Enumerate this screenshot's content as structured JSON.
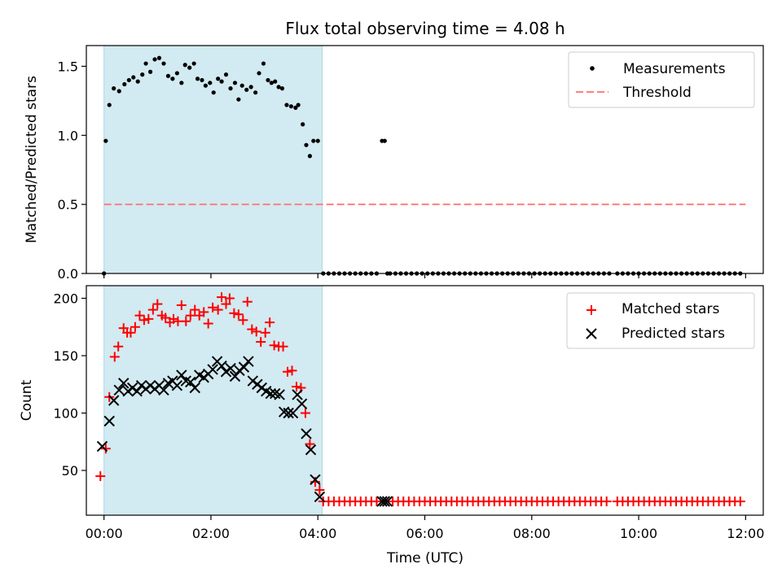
{
  "figure": {
    "title": "Flux total observing time = 4.08 h",
    "xlabel": "Time (UTC)",
    "x_ticks": [
      "00:00",
      "02:00",
      "04:00",
      "06:00",
      "08:00",
      "10:00",
      "12:00"
    ],
    "x_tick_hours": [
      0,
      2,
      4,
      6,
      8,
      10,
      12
    ],
    "xlim_hours": [
      -0.33,
      12.33
    ],
    "observing_window_hours": [
      0,
      4.08
    ],
    "observing_window_color": "#add8e6"
  },
  "chart_data": [
    {
      "type": "scatter",
      "title": "Flux total observing time = 4.08 h",
      "ylabel": "Matched/Predicted stars",
      "xlabel": "",
      "ylim": [
        0,
        1.65
      ],
      "y_ticks": [
        "0.0",
        "0.5",
        "1.0",
        "1.5"
      ],
      "y_tick_values": [
        0,
        0.5,
        1.0,
        1.5
      ],
      "legend_position": "top-right",
      "threshold": {
        "name": "Threshold",
        "value": 0.5,
        "x_range_hours": [
          0,
          12
        ],
        "color": "#ff7f7f",
        "style": "dashed"
      },
      "series": [
        {
          "name": "Measurements",
          "color": "#000000",
          "marker": "dot",
          "x_hours": [
            0,
            0.033,
            0.1,
            0.183,
            0.283,
            0.383,
            0.467,
            0.55,
            0.633,
            0.717,
            0.783,
            0.867,
            0.95,
            1.033,
            1.117,
            1.2,
            1.283,
            1.367,
            1.45,
            1.517,
            1.6,
            1.683,
            1.75,
            1.833,
            1.9,
            1.983,
            2.05,
            2.133,
            2.2,
            2.283,
            2.367,
            2.45,
            2.517,
            2.583,
            2.667,
            2.75,
            2.833,
            2.9,
            2.983,
            3.067,
            3.133,
            3.2,
            3.267,
            3.333,
            3.417,
            3.5,
            3.583,
            3.633,
            3.717,
            3.783,
            3.85,
            3.917,
            4.0,
            4.1,
            4.2,
            4.3,
            4.4,
            4.5,
            4.6,
            4.7,
            4.8,
            4.9,
            5.0,
            5.1,
            5.2,
            5.25,
            5.3,
            5.35,
            5.45,
            5.55,
            5.65,
            5.75,
            5.85,
            5.95,
            6.05,
            6.15,
            6.25,
            6.35,
            6.45,
            6.55,
            6.65,
            6.75,
            6.85,
            6.95,
            7.05,
            7.15,
            7.25,
            7.35,
            7.45,
            7.55,
            7.65,
            7.75,
            7.85,
            7.95,
            8.05,
            8.15,
            8.25,
            8.35,
            8.45,
            8.55,
            8.65,
            8.75,
            8.85,
            8.95,
            9.05,
            9.15,
            9.25,
            9.35,
            9.45,
            9.6,
            9.7,
            9.8,
            9.9,
            10.0,
            10.1,
            10.2,
            10.3,
            10.4,
            10.5,
            10.6,
            10.7,
            10.8,
            10.9,
            11.0,
            11.1,
            11.2,
            11.3,
            11.4,
            11.5,
            11.6,
            11.7,
            11.8,
            11.9
          ],
          "values": [
            0.0,
            0.96,
            1.22,
            1.34,
            1.32,
            1.37,
            1.4,
            1.42,
            1.39,
            1.44,
            1.52,
            1.46,
            1.55,
            1.56,
            1.52,
            1.43,
            1.41,
            1.45,
            1.38,
            1.51,
            1.49,
            1.52,
            1.41,
            1.4,
            1.36,
            1.38,
            1.31,
            1.41,
            1.39,
            1.44,
            1.34,
            1.38,
            1.26,
            1.36,
            1.33,
            1.35,
            1.31,
            1.45,
            1.52,
            1.4,
            1.38,
            1.39,
            1.35,
            1.34,
            1.22,
            1.21,
            1.2,
            1.22,
            1.08,
            0.93,
            0.85,
            0.96,
            0.96,
            0.0,
            0.0,
            0.0,
            0.0,
            0.0,
            0.0,
            0.0,
            0.0,
            0.0,
            0.0,
            0.0,
            0.96,
            0.96,
            0.0,
            0.0,
            0.0,
            0.0,
            0.0,
            0.0,
            0.0,
            0.0,
            0.0,
            0.0,
            0.0,
            0.0,
            0.0,
            0.0,
            0.0,
            0.0,
            0.0,
            0.0,
            0.0,
            0.0,
            0.0,
            0.0,
            0.0,
            0.0,
            0.0,
            0.0,
            0.0,
            0.0,
            0.0,
            0.0,
            0.0,
            0.0,
            0.0,
            0.0,
            0.0,
            0.0,
            0.0,
            0.0,
            0.0,
            0.0,
            0.0,
            0.0,
            0.0,
            0.0,
            0.0,
            0.0,
            0.0,
            0.0,
            0.0,
            0.0,
            0.0,
            0.0,
            0.0,
            0.0,
            0.0,
            0.0,
            0.0,
            0.0,
            0.0,
            0.0,
            0.0,
            0.0,
            0.0,
            0.0,
            0.0,
            0.0,
            0.0
          ]
        }
      ]
    },
    {
      "type": "scatter",
      "title": "",
      "ylabel": "Count",
      "xlabel": "Time (UTC)",
      "ylim": [
        11,
        211
      ],
      "y_ticks": [
        "50",
        "100",
        "150",
        "200"
      ],
      "y_tick_values": [
        50,
        100,
        150,
        200
      ],
      "legend_position": "top-right",
      "series": [
        {
          "name": "Matched stars",
          "color": "#ff0000",
          "marker": "plus",
          "x_hours": [
            -0.067,
            0.033,
            0.1,
            0.2,
            0.267,
            0.367,
            0.433,
            0.5,
            0.583,
            0.667,
            0.75,
            0.833,
            0.917,
            1.0,
            1.083,
            1.15,
            1.233,
            1.3,
            1.383,
            1.45,
            1.533,
            1.617,
            1.7,
            1.783,
            1.867,
            1.95,
            2.033,
            2.133,
            2.2,
            2.283,
            2.35,
            2.433,
            2.517,
            2.6,
            2.683,
            2.767,
            2.85,
            2.933,
            3.017,
            3.1,
            3.183,
            3.267,
            3.35,
            3.433,
            3.517,
            3.6,
            3.683,
            3.767,
            3.85,
            3.95,
            4.033,
            4.1
          ],
          "values": [
            45,
            69,
            114,
            149,
            158,
            174,
            170,
            170,
            175,
            185,
            181,
            182,
            190,
            195,
            185,
            183,
            179,
            182,
            180,
            194,
            180,
            185,
            190,
            185,
            188,
            178,
            192,
            190,
            201,
            195,
            200,
            187,
            186,
            181,
            197,
            173,
            171,
            162,
            170,
            179,
            159,
            158,
            158,
            136,
            137,
            123,
            122,
            100,
            73,
            40,
            33,
            23
          ],
          "tail_from_hours": 4.2,
          "tail_value": 23,
          "tail_gaps_hours": [
            [
              5.1,
              5.35
            ],
            [
              9.45,
              9.55
            ]
          ]
        },
        {
          "name": "Predicted stars",
          "color": "#000000",
          "marker": "x",
          "x_hours": [
            -0.033,
            0.1,
            0.183,
            0.283,
            0.367,
            0.45,
            0.533,
            0.617,
            0.7,
            0.783,
            0.867,
            0.95,
            1.033,
            1.117,
            1.2,
            1.283,
            1.367,
            1.45,
            1.533,
            1.617,
            1.7,
            1.783,
            1.867,
            1.95,
            2.033,
            2.117,
            2.2,
            2.283,
            2.367,
            2.45,
            2.533,
            2.617,
            2.7,
            2.783,
            2.867,
            2.95,
            3.033,
            3.117,
            3.2,
            3.283,
            3.367,
            3.45,
            3.533,
            3.617,
            3.7,
            3.783,
            3.867,
            3.95,
            4.033,
            5.2,
            5.25,
            5.3
          ],
          "values": [
            71,
            93,
            111,
            120,
            126,
            119,
            122,
            119,
            124,
            121,
            124,
            121,
            124,
            120,
            126,
            128,
            124,
            133,
            128,
            127,
            122,
            133,
            131,
            134,
            138,
            145,
            141,
            136,
            139,
            132,
            137,
            140,
            145,
            128,
            125,
            122,
            119,
            117,
            117,
            116,
            101,
            100,
            100,
            116,
            108,
            82,
            68,
            42,
            27,
            23,
            23,
            23
          ]
        }
      ]
    }
  ]
}
